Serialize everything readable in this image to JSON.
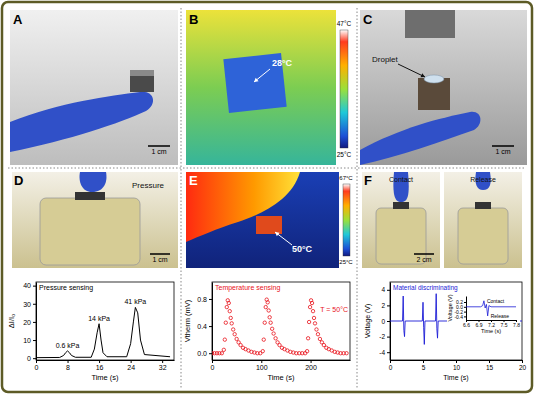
{
  "panels": [
    {
      "label": "A",
      "scale_bar": "1 cm"
    },
    {
      "label": "B",
      "temperature": "28°C",
      "colorbar": [
        "47°C",
        "25°C"
      ]
    },
    {
      "label": "C",
      "caption": "Droplet",
      "scale_bar": "1 cm"
    },
    {
      "label": "D",
      "caption": "Pressure",
      "scale_bar": "1 cm"
    },
    {
      "label": "E",
      "temperature": "50°C",
      "colorbar": [
        "67°C",
        "25°C"
      ]
    },
    {
      "label": "F",
      "captions": [
        "Contact",
        "Release"
      ],
      "scale_bar": "2 cm"
    }
  ],
  "chart_data": [
    {
      "type": "line",
      "x_label": "Time (s)",
      "y_label": "ΔI/I₀",
      "x": [
        0,
        6,
        7,
        7.5,
        8,
        8.5,
        9,
        10,
        14,
        14.8,
        15.5,
        16,
        16.5,
        17,
        18,
        23,
        24,
        24.7,
        25.2,
        25.8,
        26.5,
        27.5,
        34
      ],
      "series": [
        {
          "name": "Pressure sensing",
          "color": "#000000",
          "line_style": "solid",
          "values": [
            0.3,
            0.4,
            1.5,
            3,
            4,
            3,
            1.5,
            0.5,
            0.5,
            5,
            14,
            19,
            10,
            3,
            0.8,
            0.8,
            8,
            20,
            28,
            25,
            10,
            2,
            0.8
          ]
        }
      ],
      "annotations": [
        "0.6 kPa",
        "14 kPa",
        "41 kPa"
      ],
      "xlim": [
        0,
        35
      ],
      "xticks": [
        0,
        8,
        16,
        24,
        32
      ],
      "ylim": [
        -1,
        42
      ],
      "yticks": [
        0,
        10,
        20,
        30,
        40
      ]
    },
    {
      "type": "scatter",
      "x_label": "Time (s)",
      "y_label": "Vtherm (mV)",
      "x": [
        0,
        5,
        10,
        15,
        20,
        24,
        26,
        28,
        30,
        32,
        34,
        36,
        38,
        40,
        43,
        46,
        50,
        54,
        58,
        63,
        68,
        74,
        80,
        86,
        92,
        98,
        103,
        105,
        107,
        109,
        111,
        113,
        115,
        117,
        119,
        122,
        125,
        129,
        133,
        137,
        142,
        147,
        153,
        159,
        165,
        171,
        177,
        183,
        189,
        193,
        195,
        197,
        199,
        201,
        203,
        205,
        207,
        209,
        212,
        215,
        219,
        223,
        227,
        232,
        237,
        243,
        249,
        255,
        261,
        267,
        273
      ],
      "series": [
        {
          "name": "Temperature sensing",
          "color": "#e8121b",
          "marker": "circle",
          "line_style": "none",
          "values": [
            0,
            0,
            0,
            0,
            0,
            0.05,
            0.2,
            0.45,
            0.68,
            0.78,
            0.74,
            0.62,
            0.52,
            0.44,
            0.35,
            0.28,
            0.21,
            0.16,
            0.12,
            0.08,
            0.06,
            0.04,
            0.02,
            0.01,
            0,
            0,
            0.03,
            0.2,
            0.45,
            0.68,
            0.79,
            0.75,
            0.63,
            0.53,
            0.45,
            0.36,
            0.29,
            0.22,
            0.16,
            0.12,
            0.08,
            0.06,
            0.04,
            0.02,
            0.01,
            0,
            0,
            0,
            0,
            0.03,
            0.22,
            0.46,
            0.68,
            0.78,
            0.74,
            0.62,
            0.52,
            0.44,
            0.35,
            0.28,
            0.21,
            0.16,
            0.12,
            0.08,
            0.06,
            0.04,
            0.02,
            0.01,
            0,
            0,
            0
          ]
        }
      ],
      "annotations": [
        "T = 50°C"
      ],
      "xlim": [
        0,
        280
      ],
      "xticks": [
        0,
        100,
        200
      ],
      "ylim": [
        -0.1,
        1.05
      ],
      "yticks": [
        {
          "value": 0,
          "label": "0.0"
        },
        0.4,
        0.8
      ]
    },
    {
      "type": "line",
      "x_label": "Time (s)",
      "y_label": "Voltage (V)",
      "x": [
        0,
        1.9,
        2.0,
        2.1,
        2.2,
        2.3,
        4.9,
        5.0,
        5.1,
        5.2,
        5.3,
        6.9,
        7.0,
        7.1,
        7.2,
        7.3,
        20
      ],
      "series": [
        {
          "name": "Material discriminating",
          "color": "#1c1cd6",
          "line_style": "solid",
          "values": [
            0,
            0,
            3.2,
            -1.2,
            -2.0,
            0,
            0,
            2.4,
            -0.8,
            -3.0,
            0,
            0,
            3.5,
            -1.0,
            -2.2,
            0,
            0
          ]
        }
      ],
      "xlim": [
        0,
        20
      ],
      "xticks": [
        0,
        5,
        10,
        15,
        20
      ],
      "ylim": [
        -5,
        5
      ],
      "yticks": [
        -4,
        -2,
        0,
        2,
        4
      ]
    },
    {
      "type": "line",
      "x_label": "Time (s)",
      "y_label": "Voltage (V)",
      "x": [
        6.6,
        6.95,
        7.0,
        7.03,
        7.06,
        7.09,
        7.12,
        7.15,
        7.2,
        7.8
      ],
      "series": [
        {
          "color": "#1c1cd6",
          "line_style": "solid",
          "values": [
            0,
            0,
            0.05,
            0.25,
            -0.05,
            0.1,
            -0.38,
            0.05,
            0,
            0
          ]
        }
      ],
      "annotations": [
        "Contact",
        "Release"
      ],
      "xlim": [
        6.6,
        7.8
      ],
      "xticks": [
        6.6,
        6.9,
        7.2,
        7.5,
        7.8
      ],
      "ylim": [
        -0.55,
        0.45
      ],
      "yticks": [
        -0.4,
        -0.2,
        {
          "value": 0,
          "label": "0.0"
        },
        0.2
      ]
    }
  ]
}
